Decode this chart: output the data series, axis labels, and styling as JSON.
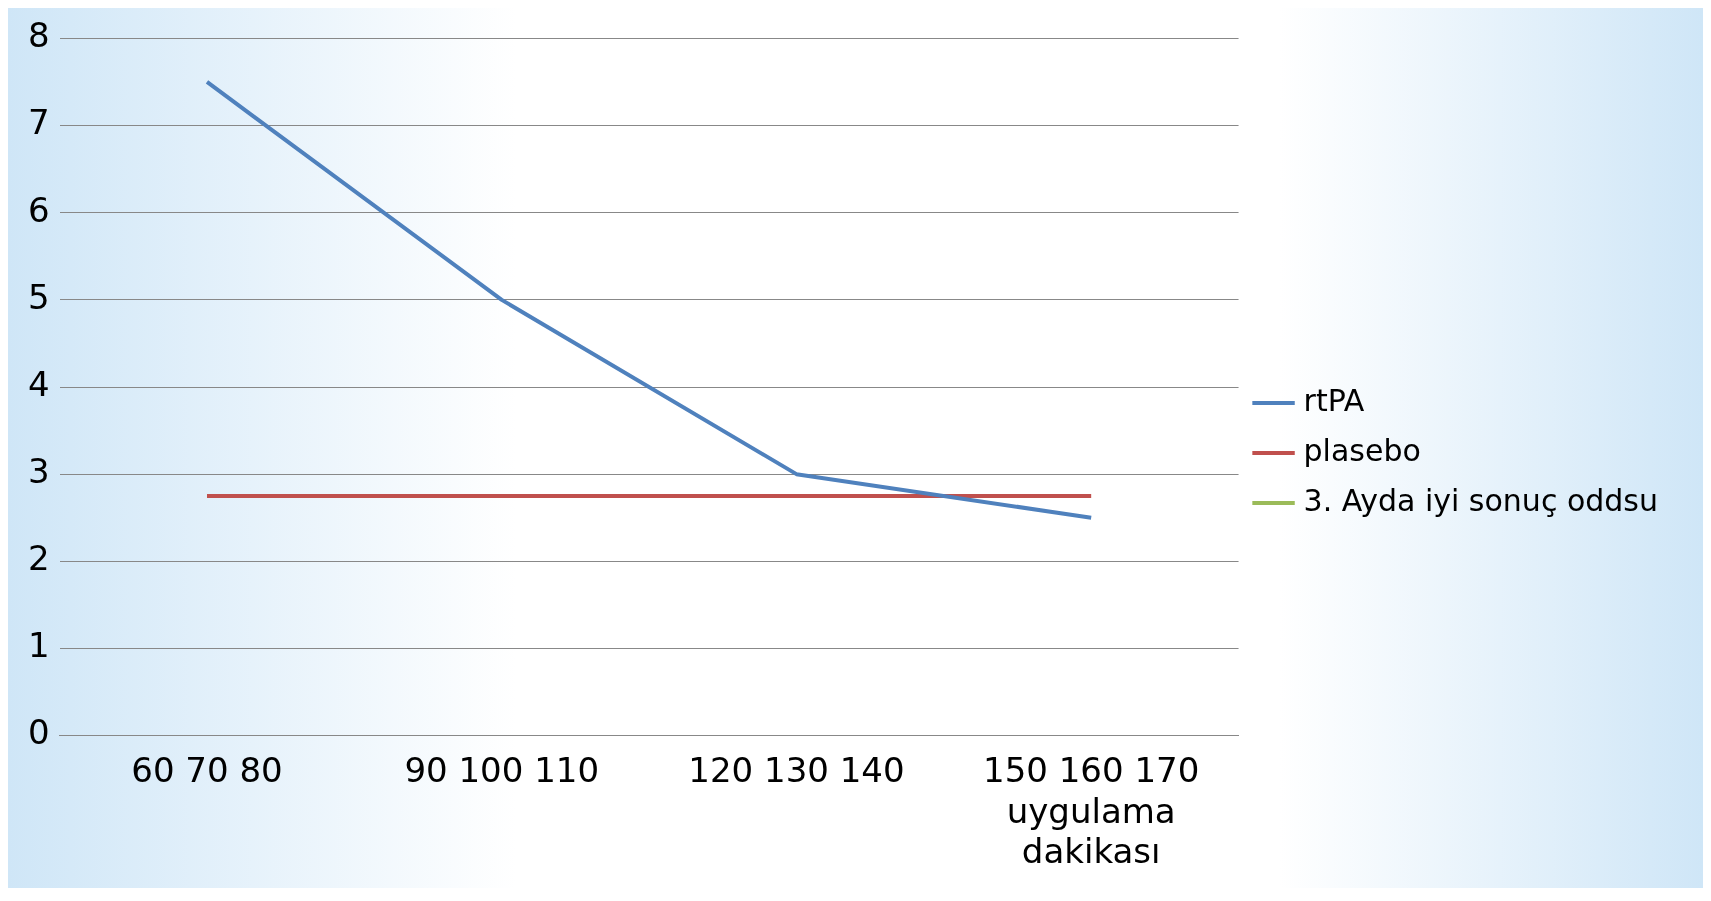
{
  "chart_data": {
    "type": "line",
    "categories": [
      "60 70 80",
      "90 100 110",
      "120 130 140",
      "150 160 170 uygulama dakikası"
    ],
    "series": [
      {
        "name": "rtPA",
        "color": "#4f81bd",
        "values": [
          7.5,
          5,
          3,
          2.5
        ]
      },
      {
        "name": "plasebo",
        "color": "#c0504d",
        "values": [
          2.75,
          2.75,
          2.75,
          2.75
        ]
      },
      {
        "name": "3. Ayda iyi sonuç oddsu",
        "color": "#9bbb59",
        "values": [
          null,
          null,
          null,
          null
        ]
      }
    ],
    "ylim": [
      0,
      8
    ],
    "yticks": [
      0,
      1,
      2,
      3,
      4,
      5,
      6,
      7,
      8
    ],
    "grid": "y",
    "legend": "right",
    "marker": "none",
    "line_style": "solid"
  }
}
